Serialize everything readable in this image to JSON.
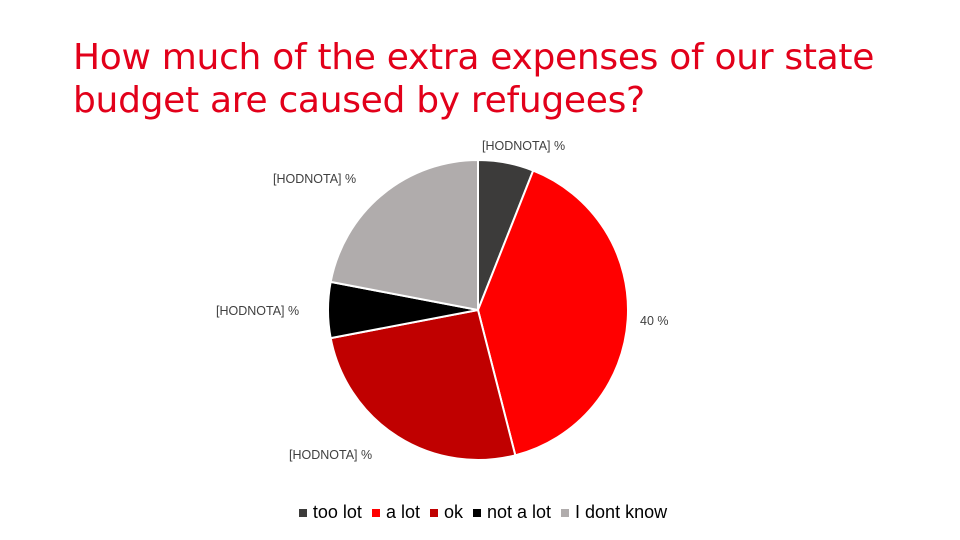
{
  "title": "How much of the extra expenses of our state budget are caused by refugees?",
  "chart_data": {
    "type": "pie",
    "title": "How much of the extra expenses of our state budget are caused by refugees?",
    "legend_position": "bottom",
    "slices": [
      {
        "name": "too lot",
        "value": 6,
        "label": "[HODNOTA] %",
        "color": "#3c3b3a"
      },
      {
        "name": "a lot",
        "value": 40,
        "label": "40 %",
        "color": "#ff0000"
      },
      {
        "name": "ok",
        "value": 26,
        "label": "[HODNOTA] %",
        "color": "#c00000"
      },
      {
        "name": "not a lot",
        "value": 6,
        "label": "[HODNOTA] %",
        "color": "#000000"
      },
      {
        "name": "I dont know",
        "value": 22,
        "label": "[HODNOTA] %",
        "color": "#b0acac"
      }
    ]
  }
}
